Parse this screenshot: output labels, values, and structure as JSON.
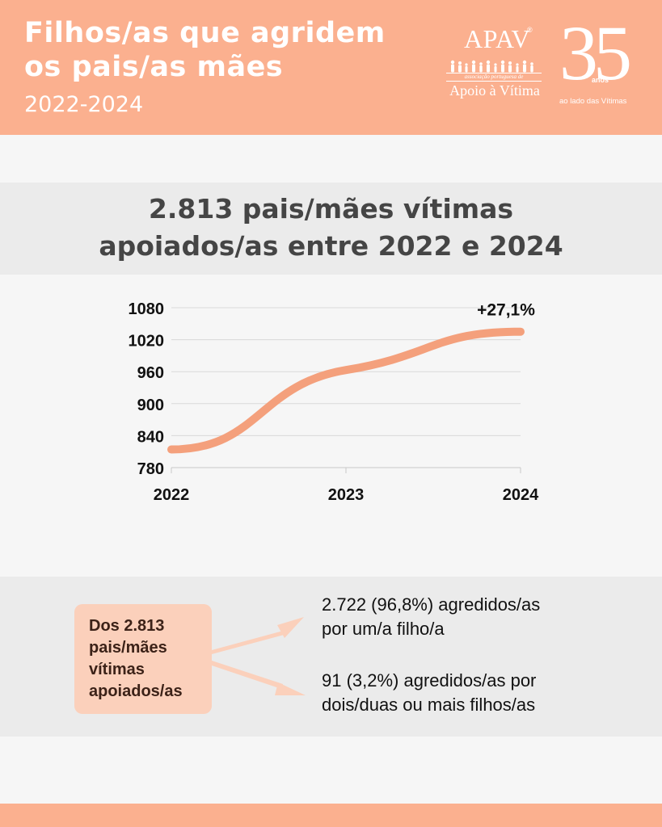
{
  "header": {
    "title_line1": "Filhos/as que agridem",
    "title_line2": "os pais/as mães",
    "years": "2022-2024",
    "logo_apav": {
      "name": "APAV",
      "registered": "®",
      "tagline": "associação portuguesa de",
      "subtitle": "Apoio à Vítima"
    },
    "logo_anniversary": {
      "number": "35",
      "unit": "anos",
      "subtitle": "ao lado das Vítimas"
    }
  },
  "headline": {
    "line1": "2.813 pais/mães vítimas",
    "line2": "apoiados/as entre 2022 e 2024"
  },
  "colors": {
    "brand": "#fbb08f",
    "line": "#f4a07c",
    "callout": "#fbd0bb"
  },
  "chart_data": {
    "type": "line",
    "x": [
      "2022",
      "2023",
      "2024"
    ],
    "series": [
      {
        "values": [
          814,
          963,
          1035
        ]
      }
    ],
    "ylim": [
      780,
      1080
    ],
    "yticks": [
      "780",
      "840",
      "900",
      "960",
      "1020",
      "1080"
    ],
    "annotation": "+27,1%",
    "grid": true,
    "smooth": true
  },
  "breakdown": {
    "callout_line1": "Dos 2.813",
    "callout_line2": "pais/mães",
    "callout_line3": "vítimas",
    "callout_line4": "apoiados/as",
    "item1_line1": "2.722 (96,8%) agredidos/as",
    "item1_line2": "por um/a filho/a",
    "item2_line1": "91 (3,2%) agredidos/as por",
    "item2_line2": "dois/duas ou mais filhos/as"
  }
}
